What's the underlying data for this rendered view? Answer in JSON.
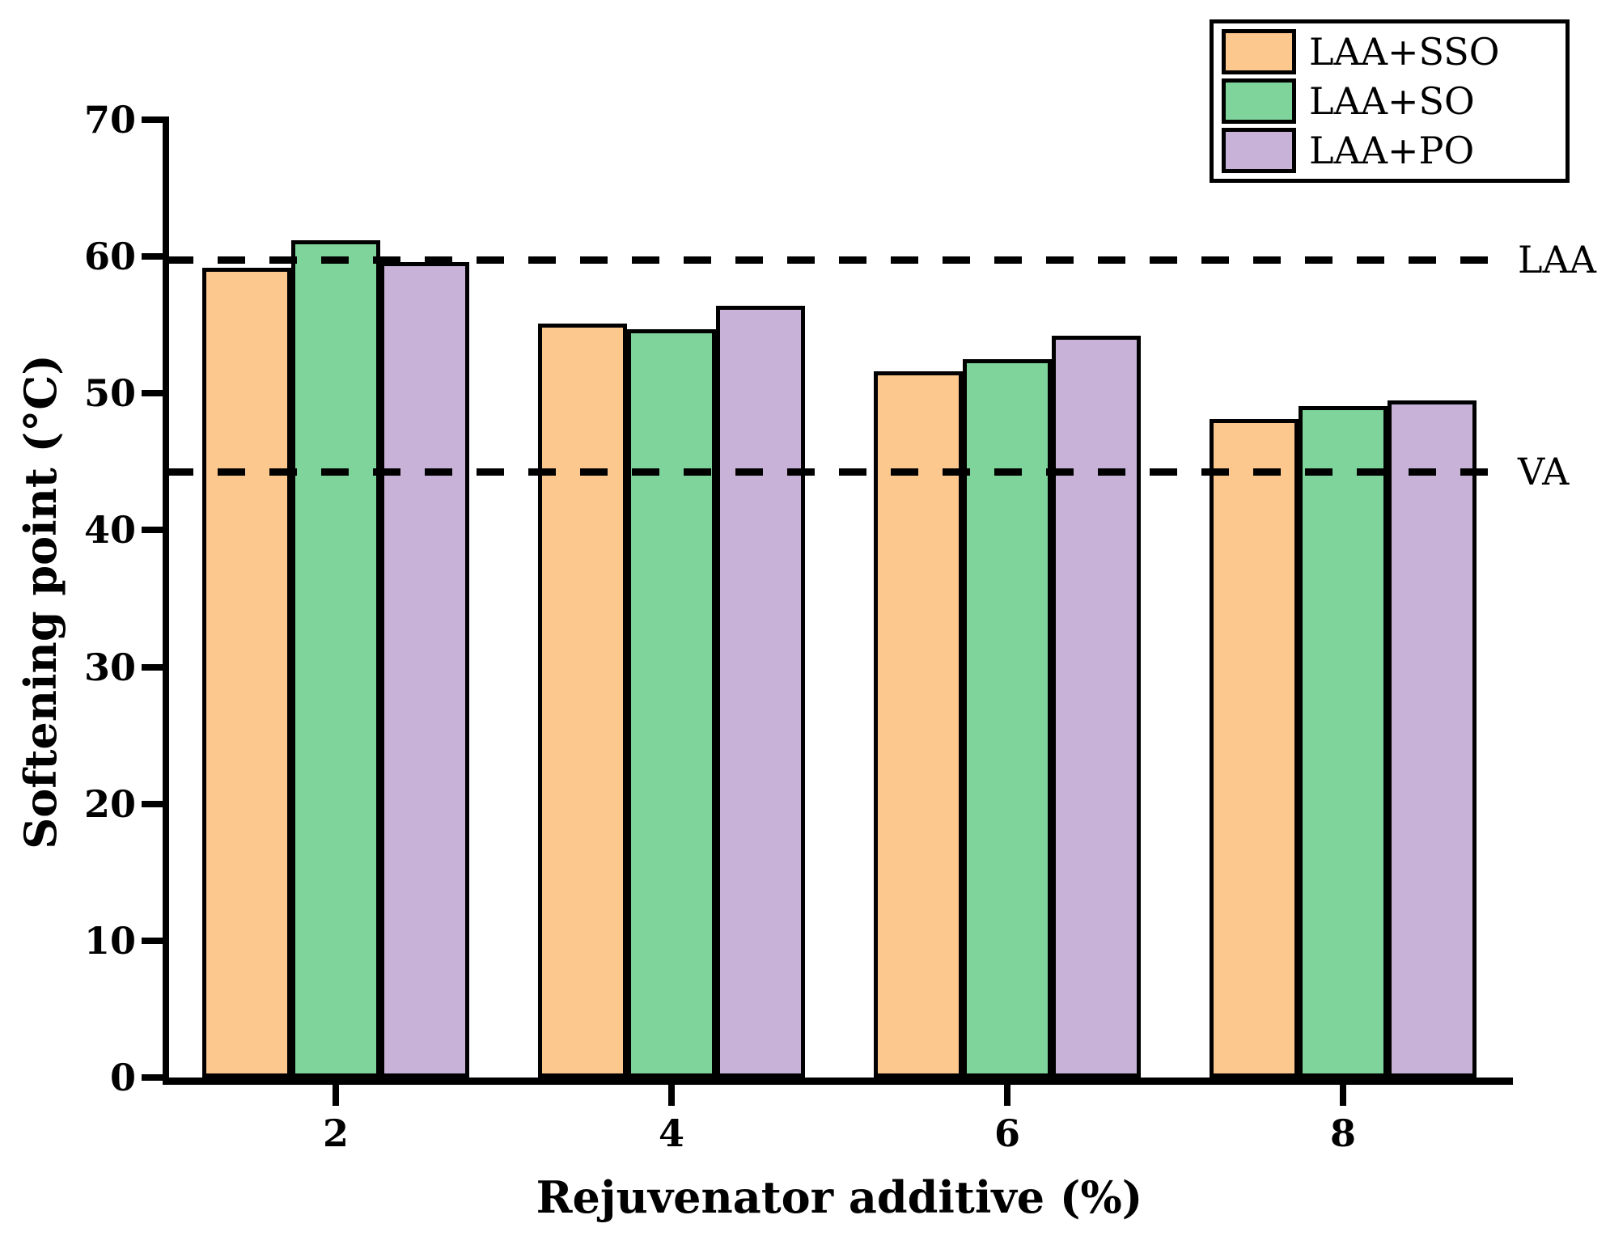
{
  "chart_data": {
    "type": "bar",
    "title": "",
    "xlabel": "Rejuvenator additive (%)",
    "ylabel": "Softening point (°C)",
    "categories": [
      "2",
      "4",
      "6",
      "8"
    ],
    "series": [
      {
        "name": "LAA+SSO",
        "color": "#FDC88E",
        "values": [
          59.2,
          55.1,
          51.6,
          48.1
        ]
      },
      {
        "name": "LAA+SO",
        "color": "#7ED49A",
        "values": [
          61.2,
          54.7,
          52.5,
          49.1
        ]
      },
      {
        "name": "LAA+PO",
        "color": "#C8B2D8",
        "values": [
          59.6,
          56.4,
          54.2,
          49.5
        ]
      }
    ],
    "reference_lines": [
      {
        "label": "LAA",
        "value": 59.8
      },
      {
        "label": "VA",
        "value": 44.3
      }
    ],
    "ylim": [
      0,
      70
    ],
    "yticks": [
      0,
      10,
      20,
      30,
      40,
      50,
      60,
      70
    ],
    "legend_position": "top-right",
    "grid": false,
    "bar_border_color": "#000000",
    "axis_color": "#000000",
    "background_color": "#ffffff"
  }
}
